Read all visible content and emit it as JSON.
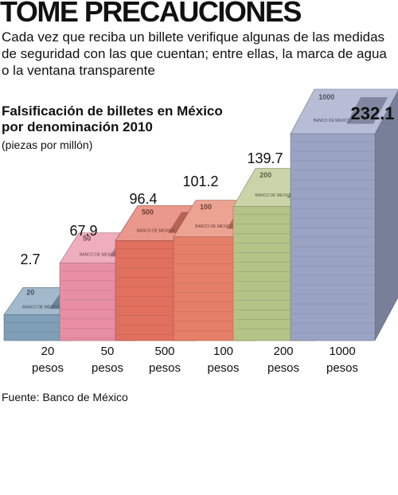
{
  "header": {
    "headline": "TOME PRECAUCIONES",
    "intro": "Cada vez que reciba un billete verifique algunas de las medidas de seguridad con las que cuentan; entre ellas, la marca de agua o la ventana transparente"
  },
  "chart_data": {
    "type": "bar",
    "title_line1": "Falsificación de billetes en México",
    "title_line2": "por denominación 2010",
    "subtitle": "(piezas por millón)",
    "categories": [
      {
        "line1": "20",
        "line2": "pesos"
      },
      {
        "line1": "50",
        "line2": "pesos"
      },
      {
        "line1": "500",
        "line2": "pesos"
      },
      {
        "line1": "100",
        "line2": "pesos"
      },
      {
        "line1": "200",
        "line2": "pesos"
      },
      {
        "line1": "1000",
        "line2": "pesos"
      }
    ],
    "values": [
      2.7,
      67.9,
      96.4,
      101.2,
      139.7,
      232.1
    ],
    "value_labels": [
      "2.7",
      "67.9",
      "96.4",
      "101.2",
      "139.7",
      "232.1"
    ],
    "colors": [
      "#7f9fb8",
      "#e88fa3",
      "#e2705e",
      "#e57f68",
      "#b4c487",
      "#9aa3c4"
    ],
    "banknote_labels": [
      "BANCO DE MEXICO",
      "BANCO DE MEXICO",
      "BANCO DE MEXICO",
      "BANCO DE MEXICO",
      "BANCO DE MEXICO",
      "BANCO DE MEXICO"
    ],
    "banknote_numbers": [
      "20",
      "50",
      "500",
      "100",
      "200",
      "1000"
    ]
  },
  "footer": {
    "source": "Fuente: Banco de México"
  }
}
